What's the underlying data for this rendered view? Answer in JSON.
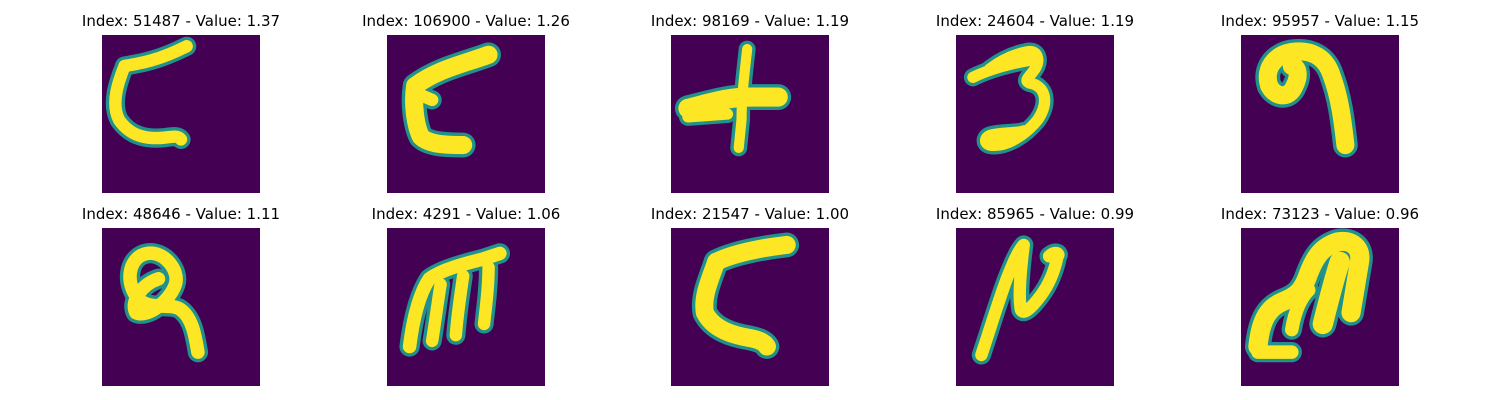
{
  "colors": {
    "background": "#440154",
    "stroke_core": "#fde725",
    "stroke_edge": "#21918c"
  },
  "panels": [
    {
      "index": "51487",
      "value": "1.37",
      "title": "Index: 51487 - Value: 1.37",
      "glyph": "c-hook"
    },
    {
      "index": "106900",
      "value": "1.26",
      "title": "Index: 106900 - Value: 1.26",
      "glyph": "epsilon-c"
    },
    {
      "index": "98169",
      "value": "1.19",
      "title": "Index: 98169 - Value: 1.19",
      "glyph": "plus"
    },
    {
      "index": "24604",
      "value": "1.19",
      "title": "Index: 24604 - Value: 1.19",
      "glyph": "three"
    },
    {
      "index": "95957",
      "value": "1.15",
      "title": "Index: 95957 - Value: 1.15",
      "glyph": "nine-hook"
    },
    {
      "index": "48646",
      "value": "1.11",
      "title": "Index: 48646 - Value: 1.11",
      "glyph": "loop-q"
    },
    {
      "index": "4291",
      "value": "1.06",
      "title": "Index: 4291 - Value: 1.06",
      "glyph": "m-shape"
    },
    {
      "index": "21547",
      "value": "1.00",
      "title": "Index: 21547 - Value: 1.00",
      "glyph": "c-open"
    },
    {
      "index": "85965",
      "value": "0.99",
      "title": "Index: 85965 - Value: 0.99",
      "glyph": "n-shape"
    },
    {
      "index": "73123",
      "value": "0.96",
      "title": "Index: 73123 - Value: 0.96",
      "glyph": "arch-block"
    }
  ]
}
